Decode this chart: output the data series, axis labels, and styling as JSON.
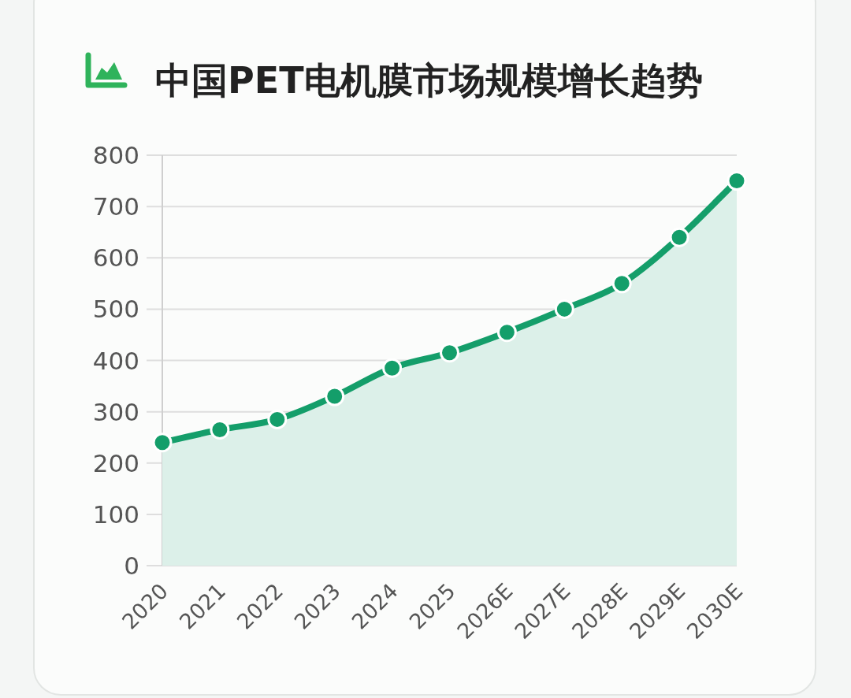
{
  "chart_data": {
    "type": "area",
    "title": "中国PET电机膜市场规模增长趋势",
    "categories": [
      "2020",
      "2021",
      "2022",
      "2023",
      "2024",
      "2025",
      "2026E",
      "2027E",
      "2028E",
      "2029E",
      "2030E"
    ],
    "values": [
      240,
      265,
      285,
      330,
      385,
      415,
      455,
      500,
      550,
      640,
      750
    ],
    "color": "#149e6a",
    "ylim": [
      0,
      800
    ],
    "yticks": [
      0,
      100,
      200,
      300,
      400,
      500,
      600,
      700,
      800
    ],
    "grid": "y",
    "marker": "circle",
    "line_style": "solid"
  }
}
